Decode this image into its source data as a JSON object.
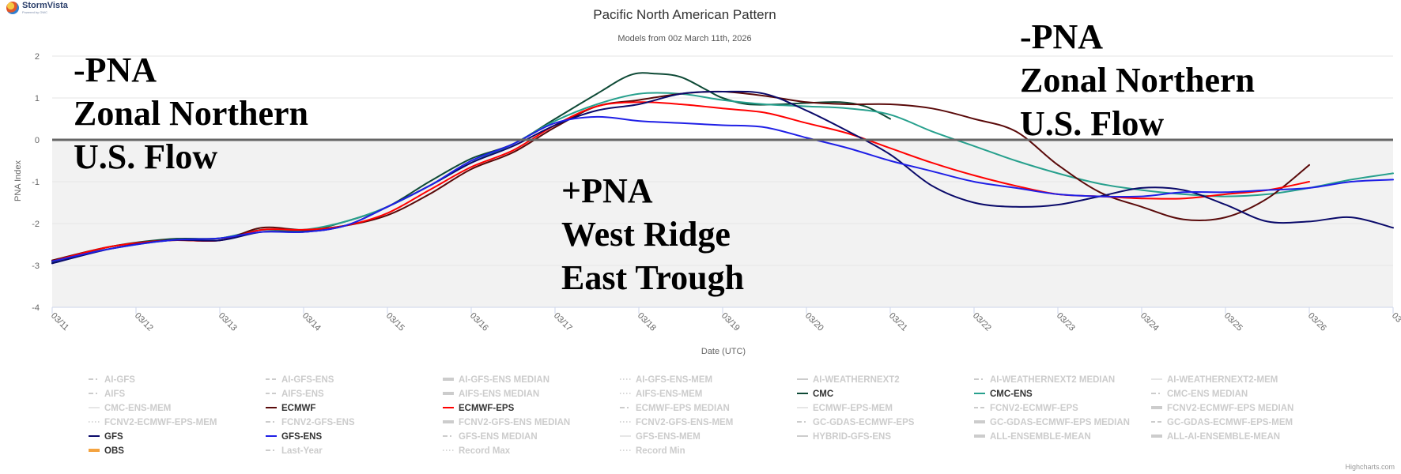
{
  "brand": {
    "name": "StormVista",
    "tagline": "Powered by OWC"
  },
  "credit": "Highcharts.com",
  "chart_data": {
    "type": "line",
    "title": "Pacific North American Pattern",
    "subtitle": "Models from 00z March 11th, 2026",
    "xlabel": "Date (UTC)",
    "ylabel": "PNA Index",
    "x_tick_labels": [
      "03/11",
      "03/12",
      "03/13",
      "03/14",
      "03/15",
      "03/16",
      "03/17",
      "03/18",
      "03/19",
      "03/20",
      "03/21",
      "03/22",
      "03/23",
      "03/24",
      "03/25",
      "03/26",
      "03"
    ],
    "x_range_days": [
      0,
      16
    ],
    "ylim": [
      -4,
      2
    ],
    "y_ticks": [
      2,
      1,
      0,
      -1,
      -2,
      -3,
      -4
    ],
    "zero_line": true,
    "shaded_negative_region": true,
    "annotations": [
      {
        "text": [
          "-PNA",
          "Zonal Northern",
          "U.S. Flow"
        ]
      },
      {
        "text": [
          "+PNA",
          "West Ridge",
          "East Trough"
        ]
      },
      {
        "text": [
          "-PNA",
          "Zonal Northern",
          "U.S. Flow"
        ]
      }
    ],
    "series": [
      {
        "name": "CMC",
        "color": "#0e4a36",
        "x": [
          0,
          0.7,
          1.4,
          2,
          2.5,
          3,
          3.5,
          4,
          4.5,
          5,
          5.5,
          6,
          6.5,
          6.9,
          7.2,
          7.5,
          7.8,
          8,
          8.3,
          8.7,
          9,
          9.4,
          9.7,
          10
        ],
        "y": [
          -2.92,
          -2.55,
          -2.37,
          -2.35,
          -2.15,
          -2.18,
          -1.95,
          -1.6,
          -1.0,
          -0.45,
          -0.1,
          0.5,
          1.1,
          1.55,
          1.58,
          1.5,
          1.2,
          1.0,
          0.85,
          0.85,
          0.88,
          0.9,
          0.8,
          0.5
        ]
      },
      {
        "name": "CMC-ENS",
        "color": "#27a08d",
        "x": [
          0,
          0.7,
          1.4,
          2,
          2.5,
          3,
          3.5,
          4,
          4.5,
          5,
          5.5,
          6,
          6.5,
          7,
          7.5,
          8,
          8.5,
          9,
          9.5,
          10,
          10.5,
          11,
          11.5,
          12,
          12.5,
          13,
          13.5,
          14,
          14.5,
          15,
          15.5,
          16
        ],
        "y": [
          -2.9,
          -2.6,
          -2.4,
          -2.35,
          -2.15,
          -2.15,
          -1.95,
          -1.6,
          -1.1,
          -0.55,
          -0.1,
          0.45,
          0.85,
          1.1,
          1.1,
          0.95,
          0.85,
          0.8,
          0.75,
          0.6,
          0.2,
          -0.15,
          -0.5,
          -0.8,
          -1.05,
          -1.2,
          -1.3,
          -1.35,
          -1.3,
          -1.15,
          -0.95,
          -0.8
        ]
      },
      {
        "name": "ECMWF",
        "color": "#5a0a0a",
        "x": [
          0,
          0.7,
          1.4,
          2,
          2.5,
          3,
          3.5,
          4,
          4.5,
          5,
          5.5,
          6,
          6.5,
          7,
          7.5,
          8,
          8.5,
          9,
          9.5,
          10,
          10.5,
          11,
          11.5,
          12,
          12.5,
          13,
          13.5,
          14,
          14.5,
          15
        ],
        "y": [
          -2.88,
          -2.55,
          -2.4,
          -2.4,
          -2.1,
          -2.15,
          -2.05,
          -1.8,
          -1.3,
          -0.7,
          -0.3,
          0.3,
          0.8,
          0.95,
          1.1,
          1.15,
          1.05,
          0.9,
          0.85,
          0.85,
          0.75,
          0.5,
          0.2,
          -0.6,
          -1.25,
          -1.6,
          -1.9,
          -1.85,
          -1.4,
          -0.6
        ]
      },
      {
        "name": "ECMWF-EPS",
        "color": "#ff0000",
        "x": [
          0,
          0.7,
          1.4,
          2,
          2.5,
          3,
          3.5,
          4,
          4.5,
          5,
          5.5,
          6,
          6.5,
          7,
          7.5,
          8,
          8.5,
          9,
          9.5,
          10,
          10.5,
          11,
          11.5,
          12,
          12.5,
          13,
          13.5,
          14,
          14.5,
          15
        ],
        "y": [
          -2.9,
          -2.55,
          -2.4,
          -2.4,
          -2.15,
          -2.15,
          -2.05,
          -1.75,
          -1.2,
          -0.65,
          -0.25,
          0.35,
          0.8,
          0.9,
          0.85,
          0.75,
          0.65,
          0.4,
          0.15,
          -0.2,
          -0.55,
          -0.85,
          -1.1,
          -1.3,
          -1.35,
          -1.4,
          -1.4,
          -1.3,
          -1.2,
          -1.0
        ]
      },
      {
        "name": "GFS",
        "color": "#0a0a6a",
        "x": [
          0,
          0.7,
          1.4,
          2,
          2.5,
          3,
          3.5,
          4,
          4.5,
          5,
          5.5,
          6,
          6.5,
          7,
          7.5,
          8,
          8.5,
          9,
          9.5,
          10,
          10.5,
          11,
          11.5,
          12,
          12.5,
          13,
          13.5,
          14,
          14.5,
          15,
          15.5,
          16
        ],
        "y": [
          -2.95,
          -2.6,
          -2.4,
          -2.4,
          -2.2,
          -2.2,
          -2.05,
          -1.6,
          -1.1,
          -0.55,
          -0.15,
          0.35,
          0.7,
          0.85,
          1.1,
          1.15,
          1.1,
          0.7,
          0.2,
          -0.35,
          -1.1,
          -1.5,
          -1.6,
          -1.55,
          -1.35,
          -1.15,
          -1.2,
          -1.55,
          -1.95,
          -1.95,
          -1.85,
          -2.1
        ]
      },
      {
        "name": "GFS-ENS",
        "color": "#1f1fe6",
        "x": [
          0,
          0.7,
          1.4,
          2,
          2.5,
          3,
          3.5,
          4,
          4.5,
          5,
          5.5,
          6,
          6.5,
          7,
          7.5,
          8,
          8.5,
          9,
          9.5,
          10,
          10.5,
          11,
          11.5,
          12,
          12.5,
          13,
          13.5,
          14,
          14.5,
          15,
          15.5,
          16
        ],
        "y": [
          -2.9,
          -2.6,
          -2.4,
          -2.35,
          -2.2,
          -2.2,
          -2.05,
          -1.6,
          -1.1,
          -0.5,
          -0.1,
          0.4,
          0.55,
          0.45,
          0.4,
          0.35,
          0.3,
          0.05,
          -0.2,
          -0.5,
          -0.75,
          -1.0,
          -1.15,
          -1.3,
          -1.35,
          -1.35,
          -1.25,
          -1.25,
          -1.2,
          -1.15,
          -1.0,
          -0.95
        ]
      }
    ],
    "legend": {
      "placement": "bottom",
      "entries": [
        {
          "name": "AI-GFS",
          "active": false,
          "style": "dash-dot"
        },
        {
          "name": "AI-GFS-ENS",
          "active": false,
          "style": "dash"
        },
        {
          "name": "AI-GFS-ENS MEDIAN",
          "active": false,
          "style": "solid-thick"
        },
        {
          "name": "AI-GFS-ENS-MEM",
          "active": false,
          "style": "dot"
        },
        {
          "name": "AI-WEATHERNEXT2",
          "active": false,
          "style": "solid"
        },
        {
          "name": "AI-WEATHERNEXT2 MEDIAN",
          "active": false,
          "style": "dash-dot"
        },
        {
          "name": "AI-WEATHERNEXT2-MEM",
          "active": false,
          "style": "solid-thin"
        },
        {
          "name": "AIFS",
          "active": false,
          "style": "dash-dot"
        },
        {
          "name": "AIFS-ENS",
          "active": false,
          "style": "dash"
        },
        {
          "name": "AIFS-ENS MEDIAN",
          "active": false,
          "style": "solid-thick"
        },
        {
          "name": "AIFS-ENS-MEM",
          "active": false,
          "style": "dot"
        },
        {
          "name": "CMC",
          "active": true,
          "color": "#0e4a36",
          "style": "solid"
        },
        {
          "name": "CMC-ENS",
          "active": true,
          "color": "#27a08d",
          "style": "solid"
        },
        {
          "name": "CMC-ENS MEDIAN",
          "active": false,
          "style": "dash-dot"
        },
        {
          "name": "CMC-ENS-MEM",
          "active": false,
          "style": "solid-thin"
        },
        {
          "name": "ECMWF",
          "active": true,
          "color": "#5a0a0a",
          "style": "solid"
        },
        {
          "name": "ECMWF-EPS",
          "active": true,
          "color": "#ff0000",
          "style": "solid"
        },
        {
          "name": "ECMWF-EPS MEDIAN",
          "active": false,
          "style": "dash-dot"
        },
        {
          "name": "ECMWF-EPS-MEM",
          "active": false,
          "style": "solid-thin"
        },
        {
          "name": "FCNV2-ECMWF-EPS",
          "active": false,
          "style": "dash"
        },
        {
          "name": "FCNV2-ECMWF-EPS MEDIAN",
          "active": false,
          "style": "solid-thick"
        },
        {
          "name": "FCNV2-ECMWF-EPS-MEM",
          "active": false,
          "style": "dot"
        },
        {
          "name": "FCNV2-GFS-ENS",
          "active": false,
          "style": "dash-dot"
        },
        {
          "name": "FCNV2-GFS-ENS MEDIAN",
          "active": false,
          "style": "solid-thick"
        },
        {
          "name": "FCNV2-GFS-ENS-MEM",
          "active": false,
          "style": "dot"
        },
        {
          "name": "GC-GDAS-ECMWF-EPS",
          "active": false,
          "style": "dash-dot"
        },
        {
          "name": "GC-GDAS-ECMWF-EPS MEDIAN",
          "active": false,
          "style": "solid-thick"
        },
        {
          "name": "GC-GDAS-ECMWF-EPS-MEM",
          "active": false,
          "style": "dash"
        },
        {
          "name": "GFS",
          "active": true,
          "color": "#0a0a6a",
          "style": "solid"
        },
        {
          "name": "GFS-ENS",
          "active": true,
          "color": "#1f1fe6",
          "style": "solid"
        },
        {
          "name": "GFS-ENS MEDIAN",
          "active": false,
          "style": "dash-dot"
        },
        {
          "name": "GFS-ENS-MEM",
          "active": false,
          "style": "solid-thin"
        },
        {
          "name": "HYBRID-GFS-ENS",
          "active": false,
          "style": "solid"
        },
        {
          "name": "ALL-ENSEMBLE-MEAN",
          "active": false,
          "style": "solid-thick"
        },
        {
          "name": "ALL-AI-ENSEMBLE-MEAN",
          "active": false,
          "style": "solid-thick"
        },
        {
          "name": "OBS",
          "active": true,
          "color": "#f4a340",
          "style": "solid-thick"
        },
        {
          "name": "Last-Year",
          "active": false,
          "style": "dash-dot"
        },
        {
          "name": "Record Max",
          "active": false,
          "style": "dot"
        },
        {
          "name": "Record Min",
          "active": false,
          "style": "dot"
        }
      ]
    }
  }
}
